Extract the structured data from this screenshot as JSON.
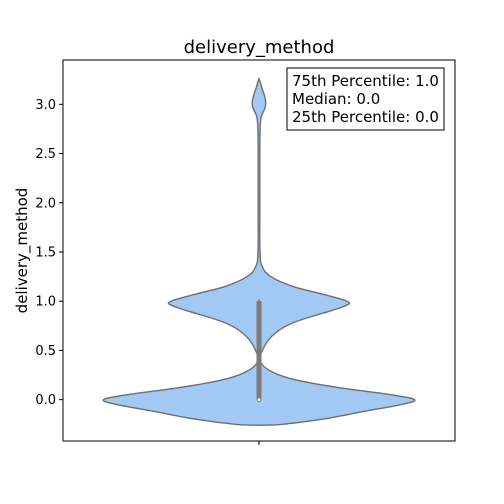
{
  "chart_data": {
    "type": "violin",
    "title": "delivery_method",
    "xlabel": "",
    "ylabel": "delivery_method",
    "ylim": [
      -0.42,
      3.45
    ],
    "yticks": [
      0.0,
      0.5,
      1.0,
      1.5,
      2.0,
      2.5,
      3.0
    ],
    "ytick_labels": [
      "0.0",
      "0.5",
      "1.0",
      "1.5",
      "2.0",
      "2.5",
      "3.0"
    ],
    "grid": false,
    "violin_color": "#a1c9f4",
    "outline_color": "#6e6e6e",
    "box_color": "#7a7a7a",
    "distribution": {
      "min": -0.26,
      "max": 3.26,
      "quartile_25": 0.0,
      "median": 0.0,
      "quartile_75": 1.0,
      "whisker_high": 1.02,
      "density_profile": [
        {
          "y": -0.26,
          "half_width": 0.0
        },
        {
          "y": -0.25,
          "half_width": 0.14
        },
        {
          "y": -0.2,
          "half_width": 0.37
        },
        {
          "y": -0.12,
          "half_width": 0.62
        },
        {
          "y": -0.05,
          "half_width": 0.84
        },
        {
          "y": 0.0,
          "half_width": 0.92
        },
        {
          "y": 0.05,
          "half_width": 0.78
        },
        {
          "y": 0.12,
          "half_width": 0.48
        },
        {
          "y": 0.2,
          "half_width": 0.22
        },
        {
          "y": 0.28,
          "half_width": 0.08
        },
        {
          "y": 0.38,
          "half_width": 0.01
        },
        {
          "y": 0.5,
          "half_width": 0.02
        },
        {
          "y": 0.65,
          "half_width": 0.08
        },
        {
          "y": 0.78,
          "half_width": 0.2
        },
        {
          "y": 0.9,
          "half_width": 0.42
        },
        {
          "y": 0.96,
          "half_width": 0.52
        },
        {
          "y": 1.0,
          "half_width": 0.52
        },
        {
          "y": 1.07,
          "half_width": 0.38
        },
        {
          "y": 1.15,
          "half_width": 0.2
        },
        {
          "y": 1.25,
          "half_width": 0.07
        },
        {
          "y": 1.35,
          "half_width": 0.02
        },
        {
          "y": 1.5,
          "half_width": 0.006
        },
        {
          "y": 2.0,
          "half_width": 0.005
        },
        {
          "y": 2.6,
          "half_width": 0.005
        },
        {
          "y": 2.8,
          "half_width": 0.008
        },
        {
          "y": 2.88,
          "half_width": 0.014
        },
        {
          "y": 2.94,
          "half_width": 0.03
        },
        {
          "y": 3.0,
          "half_width": 0.04
        },
        {
          "y": 3.08,
          "half_width": 0.034
        },
        {
          "y": 3.16,
          "half_width": 0.018
        },
        {
          "y": 3.22,
          "half_width": 0.008
        },
        {
          "y": 3.26,
          "half_width": 0.0
        }
      ]
    },
    "annotation": {
      "lines": [
        "75th Percentile: 1.0",
        "Median: 0.0",
        "25th Percentile: 0.0"
      ],
      "placement": "top-right"
    }
  }
}
